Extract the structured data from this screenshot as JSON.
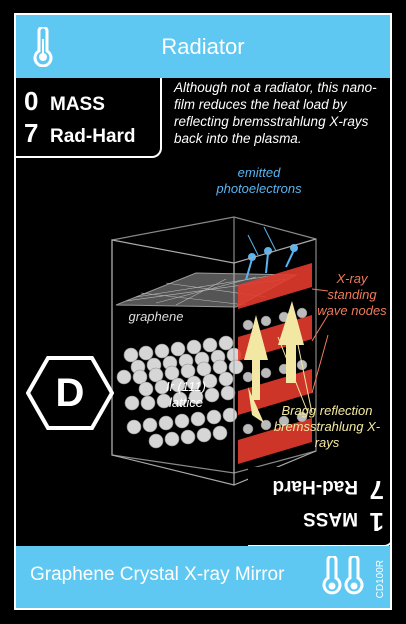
{
  "header": {
    "title": "Radiator",
    "icon": "thermometer-icon"
  },
  "stats": [
    {
      "value": "0",
      "label": "MASS"
    },
    {
      "value": "7",
      "label": "Rad-Hard"
    }
  ],
  "flip_stats": [
    {
      "value": "1",
      "label": "MASS"
    },
    {
      "value": "7",
      "label": "Rad-Hard"
    }
  ],
  "description": "Although not a radiator, this nano-film reduces the heat load by reflecting bremsstrahlung X-rays back into the plasma.",
  "illustration": {
    "emitted": "emitted photoelectrons",
    "standing": "X-ray standing wave nodes",
    "graphene": "graphene",
    "lattice": "Ir (111) lattice",
    "bragg": "Bragg reflection bremsstrahlung X-rays"
  },
  "badge": {
    "letter": "D"
  },
  "footer": {
    "title": "Graphene Crystal X-ray Mirror",
    "code": "CD100R",
    "icon": "double-thermometer-icon"
  },
  "colors": {
    "accent": "#5ec8f2",
    "standing": "#f07a5a",
    "bragg": "#f5eaa0",
    "electron": "#5ab4f0"
  }
}
